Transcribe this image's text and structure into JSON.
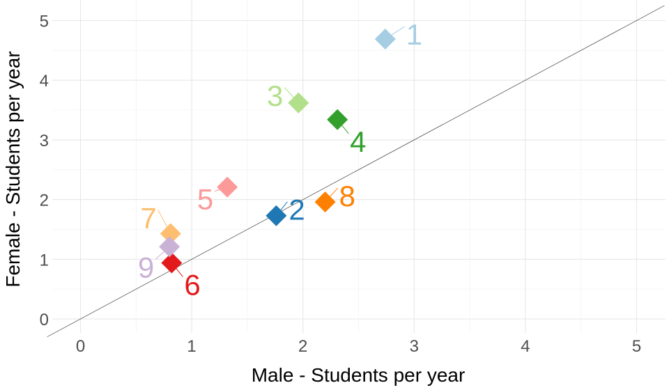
{
  "chart_data": {
    "type": "scatter",
    "xlabel": "Male - Students per year",
    "ylabel": "Female - Students per year",
    "xlim": [
      -0.25,
      5.25
    ],
    "ylim": [
      -0.25,
      5.25
    ],
    "x_ticks": [
      "0",
      "1",
      "2",
      "3",
      "4",
      "5"
    ],
    "y_ticks": [
      "0",
      "1",
      "2",
      "3",
      "4",
      "5"
    ],
    "grid": true,
    "reference_line": "y = x",
    "marker": "diamond",
    "points": [
      {
        "label": "1",
        "x": 2.74,
        "y": 4.69,
        "color": "#a6cee3"
      },
      {
        "label": "2",
        "x": 1.76,
        "y": 1.73,
        "color": "#1f78b4"
      },
      {
        "label": "3",
        "x": 1.96,
        "y": 3.62,
        "color": "#b2df8a"
      },
      {
        "label": "4",
        "x": 2.31,
        "y": 3.34,
        "color": "#33a02c"
      },
      {
        "label": "5",
        "x": 1.32,
        "y": 2.21,
        "color": "#fb9a99"
      },
      {
        "label": "6",
        "x": 0.82,
        "y": 0.94,
        "color": "#e31a1c"
      },
      {
        "label": "7",
        "x": 0.81,
        "y": 1.43,
        "color": "#fdbf6f"
      },
      {
        "label": "8",
        "x": 2.2,
        "y": 1.96,
        "color": "#ff7f00"
      },
      {
        "label": "9",
        "x": 0.8,
        "y": 1.21,
        "color": "#cab2d6"
      }
    ]
  }
}
